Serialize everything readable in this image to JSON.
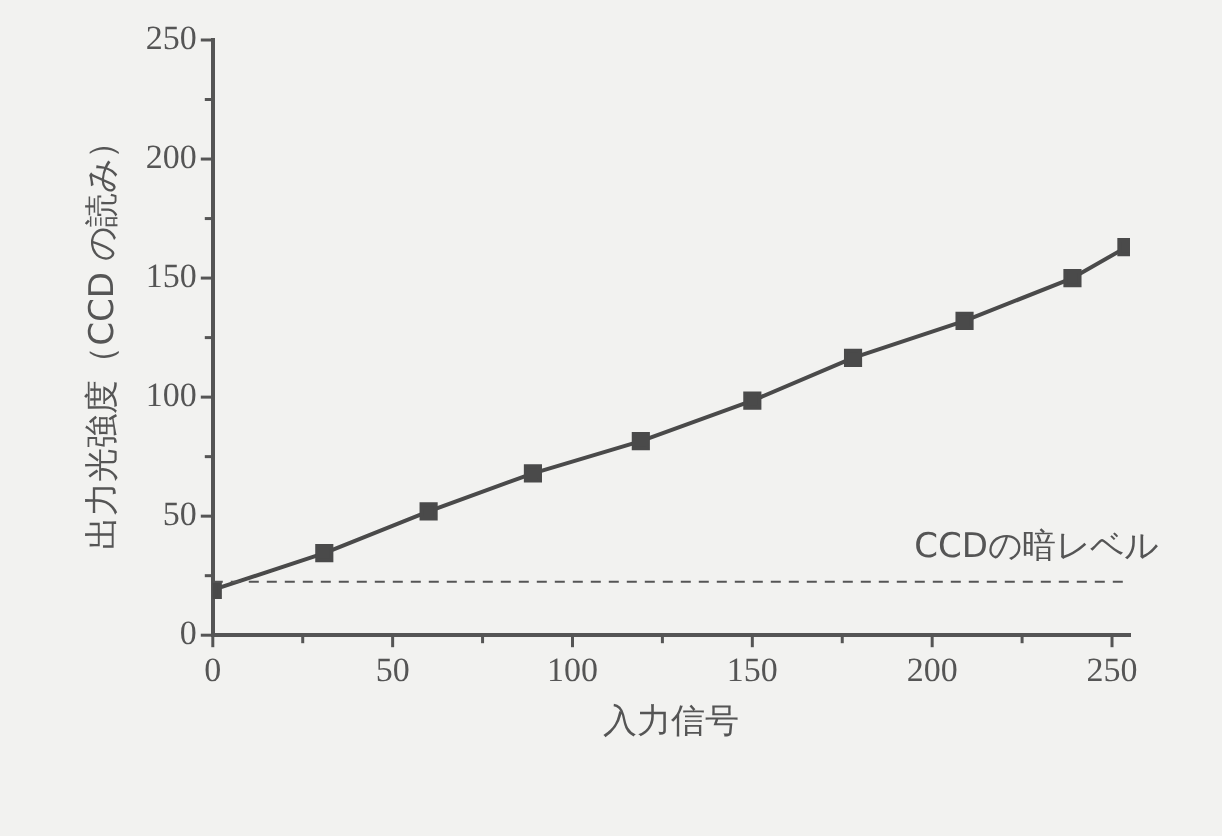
{
  "chart_data": {
    "type": "line",
    "xlabel": "入力信号",
    "ylabel": "出力光強度（CCD の読み）",
    "x": [
      0,
      31,
      60,
      89,
      119,
      150,
      178,
      209,
      239,
      254
    ],
    "series": [
      {
        "color": "#4a4a4a",
        "values": [
          19,
          34.5,
          52,
          68,
          81.5,
          98.5,
          116.5,
          132,
          150,
          163
        ]
      }
    ],
    "xlim": [
      0,
      255
    ],
    "xticks": [
      0,
      {
        "value": 25,
        "label": null
      },
      50,
      {
        "value": 75,
        "label": null
      },
      100,
      {
        "value": 125,
        "label": null
      },
      150,
      {
        "value": 175,
        "label": null
      },
      200,
      {
        "value": 225,
        "label": null
      },
      250
    ],
    "ylim": [
      0,
      250
    ],
    "yticks": [
      0,
      {
        "value": 25,
        "label": null
      },
      50,
      {
        "value": 75,
        "label": null
      },
      100,
      {
        "value": 125,
        "label": null
      },
      150,
      {
        "value": 175,
        "label": null
      },
      200,
      {
        "value": 225,
        "label": null
      },
      250
    ],
    "ref_lines": [
      {
        "axis": "y",
        "value": 22.5,
        "label": "CCDの暗レベル",
        "color": "#555555",
        "line_style": "dashed"
      }
    ],
    "grid": false,
    "legend": false,
    "marker": "square",
    "line_style": "solid"
  }
}
